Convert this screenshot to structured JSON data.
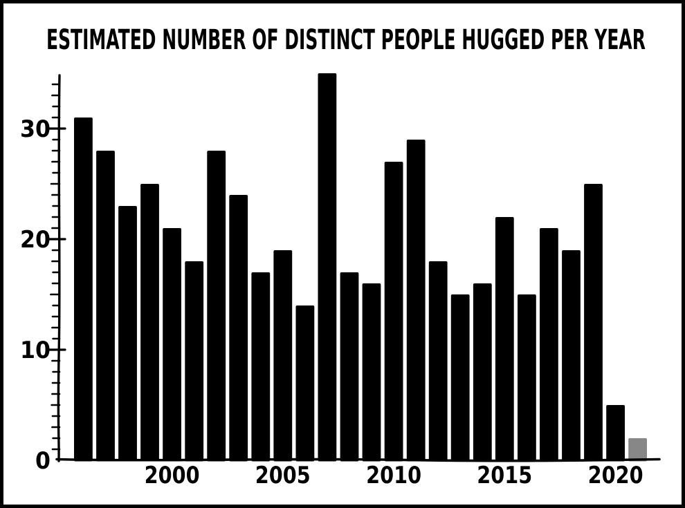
{
  "chart_data": {
    "type": "bar",
    "title": "ESTIMATED NUMBER OF DISTINCT PEOPLE HUGGED PER YEAR",
    "xlabel": "",
    "ylabel": "",
    "x": [
      1996,
      1997,
      1998,
      1999,
      2000,
      2001,
      2002,
      2003,
      2004,
      2005,
      2006,
      2007,
      2008,
      2009,
      2010,
      2011,
      2012,
      2013,
      2014,
      2015,
      2016,
      2017,
      2018,
      2019,
      2020,
      2021
    ],
    "values": [
      31,
      28,
      23,
      25,
      21,
      18,
      28,
      24,
      17,
      19,
      14,
      35,
      17,
      16,
      27,
      29,
      18,
      15,
      16,
      22,
      15,
      21,
      19,
      25,
      5,
      2
    ],
    "xtick_labels": [
      "2000",
      "2005",
      "2010",
      "2015",
      "2020"
    ],
    "xtick_years": [
      2000,
      2005,
      2010,
      2015,
      2020
    ],
    "ytick_labels": [
      "0",
      "10",
      "20",
      "30"
    ],
    "ytick_values": [
      0,
      10,
      20,
      30
    ],
    "ylim": [
      0,
      34.8
    ],
    "grid": false,
    "legend": null,
    "bar_color": "#000000",
    "final_bar_color": "#878787",
    "final_bar_year": 2021,
    "style_note": "xkcd hand-drawn style, black bars, last partial-year bar gray"
  },
  "colors": {
    "ink": "#000000",
    "background": "#ffffff",
    "frame": "#000000",
    "gray_bar": "#878787"
  }
}
